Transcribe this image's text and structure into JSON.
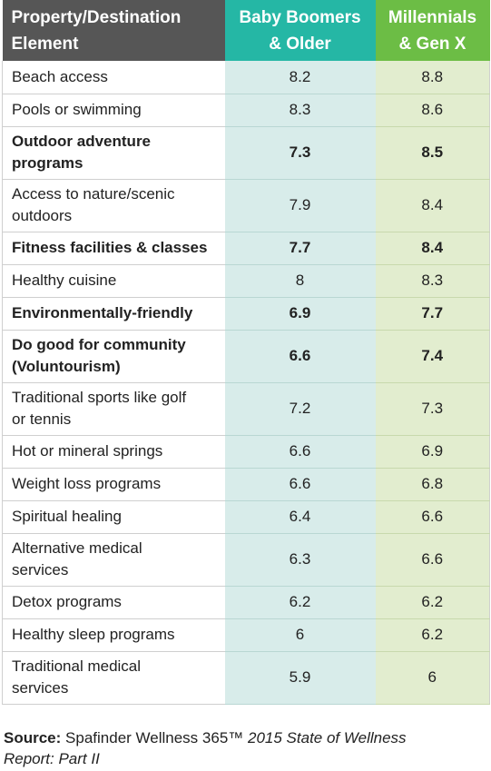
{
  "chart_data": {
    "type": "table",
    "columns": [
      "Property/Destination Element",
      "Baby Boomers & Older",
      "Millennials & Gen X"
    ],
    "header_lines": [
      [
        "Property/Destination",
        "Element"
      ],
      [
        "Baby Boomers",
        "& Older"
      ],
      [
        "Millennials",
        "& Gen X"
      ]
    ],
    "rows": [
      {
        "label_lines": [
          "Beach access"
        ],
        "values": [
          "8.2",
          "8.8"
        ],
        "bold": false
      },
      {
        "label_lines": [
          "Pools or swimming"
        ],
        "values": [
          "8.3",
          "8.6"
        ],
        "bold": false
      },
      {
        "label_lines": [
          "Outdoor adventure",
          "programs"
        ],
        "values": [
          "7.3",
          "8.5"
        ],
        "bold": true
      },
      {
        "label_lines": [
          "Access to nature/scenic",
          "outdoors"
        ],
        "values": [
          "7.9",
          "8.4"
        ],
        "bold": false
      },
      {
        "label_lines": [
          "Fitness facilities & classes"
        ],
        "values": [
          "7.7",
          "8.4"
        ],
        "bold": true
      },
      {
        "label_lines": [
          "Healthy cuisine"
        ],
        "values": [
          "8",
          "8.3"
        ],
        "bold": false
      },
      {
        "label_lines": [
          "Environmentally-friendly"
        ],
        "values": [
          "6.9",
          "7.7"
        ],
        "bold": true
      },
      {
        "label_lines": [
          "Do good for community",
          "(Voluntourism)"
        ],
        "values": [
          "6.6",
          "7.4"
        ],
        "bold": true
      },
      {
        "label_lines": [
          "Traditional sports like golf",
          "or tennis"
        ],
        "values": [
          "7.2",
          "7.3"
        ],
        "bold": false
      },
      {
        "label_lines": [
          "Hot or mineral springs"
        ],
        "values": [
          "6.6",
          "6.9"
        ],
        "bold": false
      },
      {
        "label_lines": [
          "Weight loss programs"
        ],
        "values": [
          "6.6",
          "6.8"
        ],
        "bold": false
      },
      {
        "label_lines": [
          "Spiritual healing"
        ],
        "values": [
          "6.4",
          "6.6"
        ],
        "bold": false
      },
      {
        "label_lines": [
          "Alternative medical",
          "services"
        ],
        "values": [
          "6.3",
          "6.6"
        ],
        "bold": false
      },
      {
        "label_lines": [
          "Detox programs"
        ],
        "values": [
          "6.2",
          "6.2"
        ],
        "bold": false
      },
      {
        "label_lines": [
          "Healthy sleep programs"
        ],
        "values": [
          "6",
          "6.2"
        ],
        "bold": false
      },
      {
        "label_lines": [
          "Traditional medical",
          "services"
        ],
        "values": [
          "5.9",
          "6"
        ],
        "bold": false
      }
    ],
    "colors": {
      "header_label_bg": "#565656",
      "boomers_header_bg": "#25b7a5",
      "millennials_header_bg": "#6cbd45",
      "boomers_cell_bg": "#d8ecea",
      "millennials_cell_bg": "#e2edcf"
    }
  },
  "source": {
    "label": "Source:",
    "text": "Spafinder Wellness 365™",
    "italic_line1": "2015 State of Wellness",
    "italic_line2": "Report: Part II"
  }
}
